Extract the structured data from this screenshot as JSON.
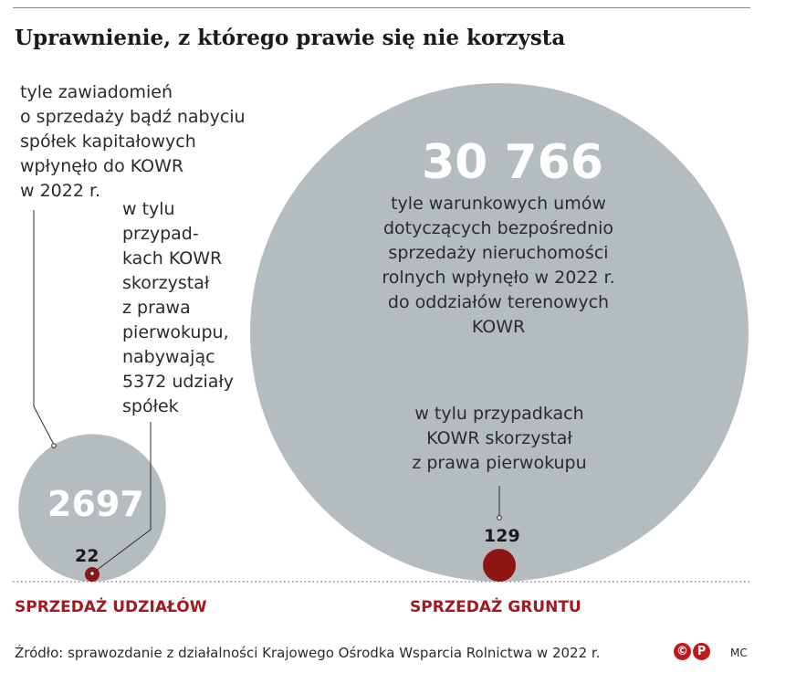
{
  "title": "Uprawnienie, z którego prawie się nie korzysta",
  "chart_data": {
    "type": "bubble",
    "groups": [
      {
        "category": "SPRZEDAŻ UDZIAŁÓW",
        "total": 2697,
        "total_label": "2697",
        "total_desc": "tyle zawiadomień\no sprzedaży bądź nabyciu\nspółek kapitałowych\nwpłynęło do KOWR\nw 2022 r.",
        "exercised": 22,
        "exercised_label": "22",
        "exercised_desc": "w tylu\nprzypad-\nkach KOWR\nskorzystał\nz prawa\npierwokupu,\nnabywając\n5372 udziały\nspółek"
      },
      {
        "category": "SPRZEDAŻ GRUNTU",
        "total": 30766,
        "total_label": "30 766",
        "total_desc": "tyle warunkowych umów\ndotyczących bezpośrednio\nsprzedaży nieruchomości\nrolnych wpłynęło w 2022 r.\ndo oddziałów terenowych\nKOWR",
        "exercised": 129,
        "exercised_label": "129",
        "exercised_desc": "w tylu przypadkach\nKOWR skorzystał\nz prawa pierwokupu"
      }
    ],
    "colors": {
      "total": "#b5bcc0",
      "exercised": "#8e1512",
      "category": "#a3191d"
    }
  },
  "footer": {
    "source": "Źródło: sprawozdanie z działalności Krajowego Ośrodka Wsparcia Rolnictwa w 2022 r.",
    "logo": [
      "©",
      "P"
    ],
    "author": "MC"
  }
}
